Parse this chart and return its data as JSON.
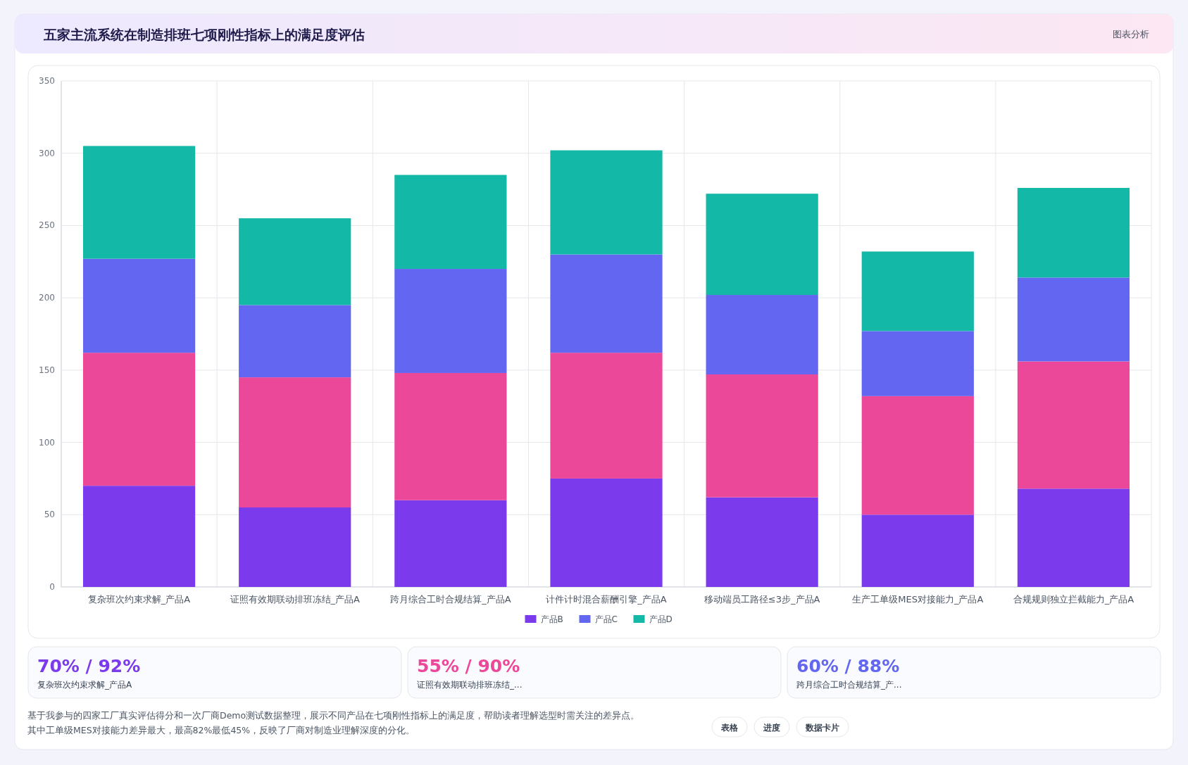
{
  "chart_data": {
    "type": "bar",
    "stacked": true,
    "title": "五家主流系统在制造排班七项刚性指标上的满足度评估",
    "categories": [
      "复杂班次约束求解_产品A",
      "证照有效期联动排班冻结_产品A",
      "跨月综合工时合规结算_产品A",
      "计件计时混合薪酬引擎_产品A",
      "移动端员工路径≤3步_产品A",
      "生产工单级MES对接能力_产品A",
      "合规规则独立拦截能力_产品A"
    ],
    "series": [
      {
        "name": "产品B",
        "color": "#7c3aed",
        "values": [
          70,
          55,
          60,
          75,
          62,
          50,
          68
        ]
      },
      {
        "color": "#ec4899",
        "values": [
          92,
          90,
          88,
          87,
          85,
          82,
          88
        ]
      },
      {
        "name": "产品C",
        "color": "#6366f1",
        "values": [
          65,
          50,
          72,
          68,
          55,
          45,
          58
        ]
      },
      {
        "name": "产品D",
        "color": "#14b8a6",
        "values": [
          78,
          60,
          65,
          72,
          70,
          55,
          62
        ]
      }
    ],
    "ylim": [
      0,
      350
    ],
    "yticks": [
      0,
      50,
      100,
      150,
      200,
      250,
      300,
      350
    ],
    "grid": true,
    "legend": "bottom",
    "annotations": [
      "图表分析",
      "70% / 92%",
      "复杂班次约束求解_产品A",
      "55% / 90%",
      "证照有效期联动排班冻结_...",
      "60% / 88%",
      "跨月综合工时合规结算_产...",
      "基于我参与的四家工厂真实评估得分和一次厂商Demo测试数据整理，展示不同产品在七项刚性指标上的满足度，帮助读者理解选型时需关注的差异点。",
      "其中工单级MES对接能力差异最大，最高82%最低45%，反映了厂商对制造业理解深度的分化。",
      "表格",
      "进度",
      "数据卡片"
    ]
  }
}
